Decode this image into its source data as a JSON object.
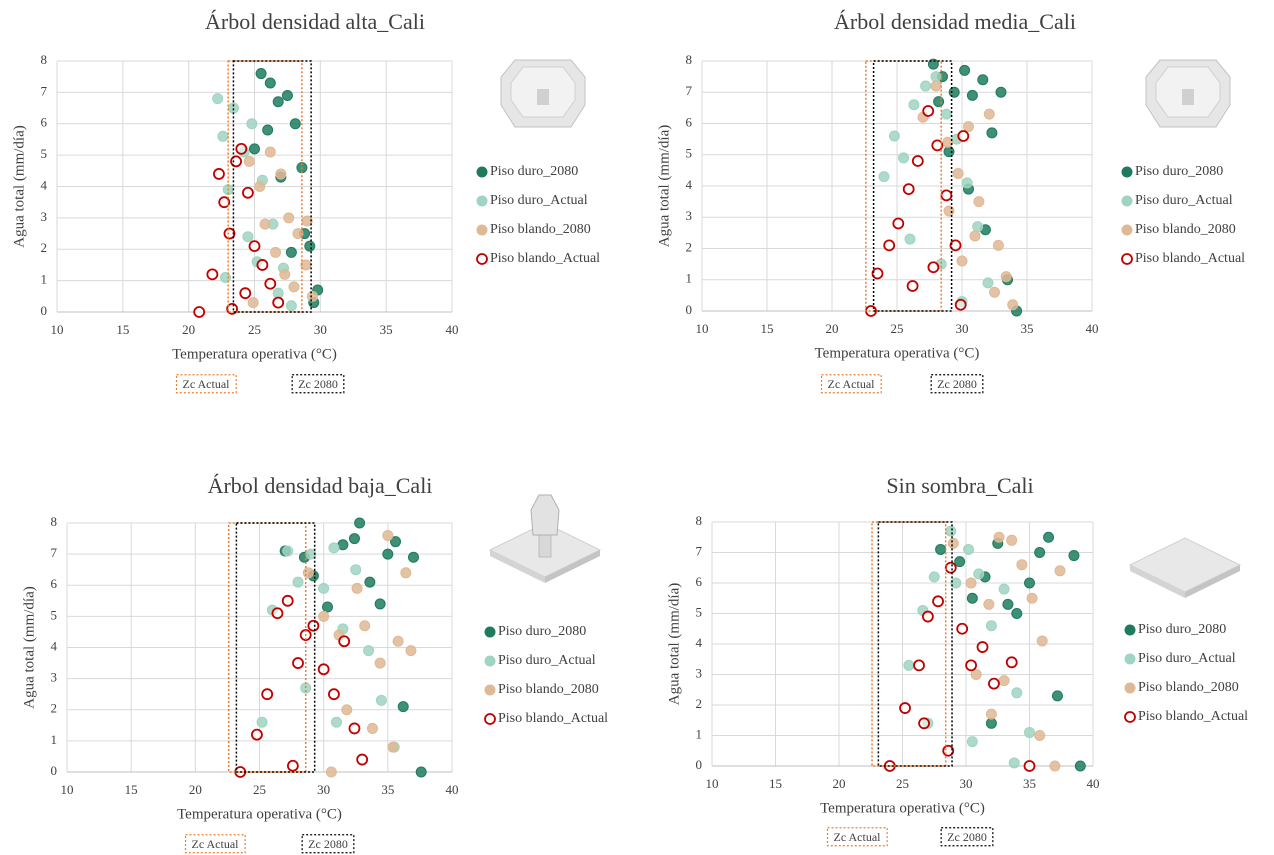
{
  "chart_data": [
    {
      "type": "scatter",
      "title": "Árbol densidad alta_Cali",
      "x_label": "Temperatura operativa (°C)",
      "y_label": "Agua total (mm/día)",
      "xlim": [
        10,
        40
      ],
      "xticks": [
        10,
        15,
        20,
        25,
        30,
        35,
        40
      ],
      "ylim": [
        0,
        8
      ],
      "yticks": [
        0,
        1,
        2,
        3,
        4,
        5,
        6,
        7,
        8
      ],
      "grid": true,
      "zones": [
        {
          "label": "Zc Actual",
          "xlim": [
            23,
            28.6
          ],
          "color": "#ed7d31"
        },
        {
          "label": "Zc 2080",
          "xlim": [
            23.4,
            29.3
          ],
          "color": "#000000"
        }
      ],
      "series": [
        {
          "name": "Piso duro_2080",
          "color": "#1e7b5f",
          "x": [
            25.5,
            26.2,
            26.8,
            27.5,
            28.1,
            28.6,
            29.2,
            29.8,
            27.0,
            26.0,
            28.8,
            25.0,
            27.8,
            29.5
          ],
          "values": [
            7.6,
            7.3,
            6.7,
            6.9,
            6.0,
            4.6,
            2.1,
            0.7,
            4.3,
            5.8,
            2.5,
            5.2,
            1.9,
            0.3
          ]
        },
        {
          "name": "Piso duro_Actual",
          "color": "#9fd4c0",
          "x": [
            22.2,
            22.6,
            23.4,
            24.2,
            24.8,
            25.6,
            26.4,
            27.2,
            23.0,
            24.5,
            25.2,
            26.8,
            22.8,
            27.8
          ],
          "values": [
            6.8,
            5.6,
            6.5,
            5.1,
            6.0,
            4.2,
            2.8,
            1.4,
            3.9,
            2.4,
            1.6,
            0.6,
            1.1,
            0.2
          ]
        },
        {
          "name": "Piso blando_2080",
          "color": "#dfb895",
          "x": [
            24.6,
            25.4,
            26.2,
            27.0,
            27.6,
            28.3,
            28.9,
            29.4,
            25.8,
            26.6,
            27.3,
            28.0,
            29.0,
            24.9
          ],
          "values": [
            4.8,
            4.0,
            5.1,
            4.4,
            3.0,
            2.5,
            1.5,
            0.5,
            2.8,
            1.9,
            1.2,
            0.8,
            2.9,
            0.3
          ]
        },
        {
          "name": "Piso blando_Actual",
          "color": "#c00000",
          "hollow": true,
          "x": [
            20.8,
            21.8,
            22.3,
            22.7,
            23.1,
            23.6,
            24.0,
            24.5,
            25.0,
            25.6,
            26.2,
            26.8,
            23.3,
            24.3
          ],
          "values": [
            0,
            1.2,
            4.4,
            3.5,
            2.5,
            4.8,
            5.2,
            3.8,
            2.1,
            1.5,
            0.9,
            0.3,
            0.1,
            0.6
          ]
        }
      ]
    },
    {
      "type": "scatter",
      "title": "Árbol densidad media_Cali",
      "x_label": "Temperatura operativa (°C)",
      "y_label": "Agua total (mm/día)",
      "xlim": [
        10,
        40
      ],
      "xticks": [
        10,
        15,
        20,
        25,
        30,
        35,
        40
      ],
      "ylim": [
        0,
        8
      ],
      "yticks": [
        0,
        1,
        2,
        3,
        4,
        5,
        6,
        7,
        8
      ],
      "grid": true,
      "zones": [
        {
          "label": "Zc Actual",
          "xlim": [
            22.6,
            28.4
          ],
          "color": "#ed7d31"
        },
        {
          "label": "Zc 2080",
          "xlim": [
            23.2,
            29.2
          ],
          "color": "#000000"
        }
      ],
      "series": [
        {
          "name": "Piso duro_2080",
          "color": "#1e7b5f",
          "x": [
            27.8,
            28.5,
            29.4,
            30.2,
            30.8,
            31.6,
            32.3,
            33.0,
            29.0,
            30.5,
            31.8,
            33.5,
            28.2,
            34.2
          ],
          "values": [
            7.9,
            7.5,
            7.0,
            7.7,
            6.9,
            7.4,
            5.7,
            7.0,
            5.1,
            3.9,
            2.6,
            1.0,
            6.7,
            0.0
          ]
        },
        {
          "name": "Piso duro_Actual",
          "color": "#9fd4c0",
          "x": [
            24.0,
            24.8,
            25.5,
            26.3,
            27.2,
            28.0,
            28.8,
            29.6,
            30.4,
            31.2,
            32.0,
            26.0,
            28.4,
            30.0
          ],
          "values": [
            4.3,
            5.6,
            4.9,
            6.6,
            7.2,
            7.5,
            6.3,
            5.5,
            4.1,
            2.7,
            0.9,
            2.3,
            1.5,
            0.3
          ]
        },
        {
          "name": "Piso blando_2080",
          "color": "#dfb895",
          "x": [
            27.0,
            28.0,
            28.9,
            29.7,
            30.5,
            31.3,
            32.1,
            32.8,
            33.4,
            30.0,
            31.0,
            32.5,
            29.0,
            33.9
          ],
          "values": [
            6.2,
            7.2,
            5.4,
            4.4,
            5.9,
            3.5,
            6.3,
            2.1,
            1.1,
            1.6,
            2.4,
            0.6,
            3.2,
            0.2
          ]
        },
        {
          "name": "Piso blando_Actual",
          "color": "#c00000",
          "hollow": true,
          "x": [
            23.0,
            23.5,
            24.4,
            25.1,
            25.9,
            26.6,
            27.4,
            28.1,
            28.8,
            29.5,
            30.1,
            26.2,
            27.8,
            29.9
          ],
          "values": [
            0.0,
            1.2,
            2.1,
            2.8,
            3.9,
            4.8,
            6.4,
            5.3,
            3.7,
            2.1,
            5.6,
            0.8,
            1.4,
            0.2
          ]
        }
      ]
    },
    {
      "type": "scatter",
      "title": "Árbol densidad baja_Cali",
      "x_label": "Temperatura operativa (°C)",
      "y_label": "Agua total (mm/día)",
      "xlim": [
        10,
        40
      ],
      "xticks": [
        10,
        15,
        20,
        25,
        30,
        35,
        40
      ],
      "ylim": [
        0,
        8
      ],
      "yticks": [
        0,
        1,
        2,
        3,
        4,
        5,
        6,
        7,
        8
      ],
      "grid": true,
      "zones": [
        {
          "label": "Zc Actual",
          "xlim": [
            22.6,
            28.6
          ],
          "color": "#ed7d31"
        },
        {
          "label": "Zc 2080",
          "xlim": [
            23.2,
            29.3
          ],
          "color": "#000000"
        }
      ],
      "series": [
        {
          "name": "Piso duro_2080",
          "color": "#1e7b5f",
          "x": [
            27.0,
            28.5,
            29.2,
            30.3,
            31.5,
            32.4,
            32.8,
            33.6,
            34.4,
            35.0,
            35.6,
            36.2,
            37.0,
            37.6
          ],
          "values": [
            7.1,
            6.9,
            6.3,
            5.3,
            7.3,
            7.5,
            8.0,
            6.1,
            5.4,
            7.0,
            7.4,
            2.1,
            6.9,
            0.0
          ]
        },
        {
          "name": "Piso duro_Actual",
          "color": "#9fd4c0",
          "x": [
            25.2,
            26.0,
            27.2,
            28.0,
            29.0,
            30.0,
            30.8,
            31.5,
            32.5,
            33.5,
            34.5,
            35.5,
            28.6,
            31.0
          ],
          "values": [
            1.6,
            5.2,
            7.1,
            6.1,
            7.0,
            5.9,
            7.2,
            4.6,
            6.5,
            3.9,
            2.3,
            0.8,
            2.7,
            1.6
          ]
        },
        {
          "name": "Piso blando_2080",
          "color": "#dfb895",
          "x": [
            28.8,
            30.0,
            31.2,
            32.6,
            33.2,
            34.4,
            35.0,
            35.8,
            36.4,
            36.8,
            31.8,
            33.8,
            35.4,
            30.6
          ],
          "values": [
            6.4,
            5.0,
            4.4,
            5.9,
            4.7,
            3.5,
            7.6,
            4.2,
            6.4,
            3.9,
            2.0,
            1.4,
            0.8,
            0.0
          ]
        },
        {
          "name": "Piso blando_Actual",
          "color": "#c00000",
          "hollow": true,
          "x": [
            23.5,
            24.8,
            25.6,
            26.4,
            27.2,
            28.0,
            28.6,
            29.2,
            30.0,
            30.8,
            31.6,
            32.4,
            33.0,
            27.6
          ],
          "values": [
            0.0,
            1.2,
            2.5,
            5.1,
            5.5,
            3.5,
            4.4,
            4.7,
            3.3,
            2.5,
            4.2,
            1.4,
            0.4,
            0.2
          ]
        }
      ]
    },
    {
      "type": "scatter",
      "title": "Sin sombra_Cali",
      "x_label": "Temperatura operativa (°C)",
      "y_label": "Agua total (mm/día)",
      "xlim": [
        10,
        40
      ],
      "xticks": [
        10,
        15,
        20,
        25,
        30,
        35,
        40
      ],
      "ylim": [
        0,
        8
      ],
      "yticks": [
        0,
        1,
        2,
        3,
        4,
        5,
        6,
        7,
        8
      ],
      "grid": true,
      "zones": [
        {
          "label": "Zc Actual",
          "xlim": [
            22.6,
            28.4
          ],
          "color": "#ed7d31"
        },
        {
          "label": "Zc 2080",
          "xlim": [
            23.1,
            28.9
          ],
          "color": "#000000"
        }
      ],
      "series": [
        {
          "name": "Piso duro_2080",
          "color": "#1e7b5f",
          "x": [
            28.0,
            29.5,
            30.5,
            31.5,
            32.5,
            33.3,
            34.0,
            35.0,
            35.8,
            36.5,
            37.2,
            38.5,
            32.0,
            39.0
          ],
          "values": [
            7.1,
            6.7,
            5.5,
            6.2,
            7.3,
            5.3,
            5.0,
            6.0,
            7.0,
            7.5,
            2.3,
            6.9,
            1.4,
            0.0
          ]
        },
        {
          "name": "Piso duro_Actual",
          "color": "#9fd4c0",
          "x": [
            25.5,
            26.6,
            27.5,
            28.8,
            29.2,
            30.2,
            31.0,
            32.0,
            33.0,
            34.0,
            35.0,
            27.0,
            30.5,
            33.8
          ],
          "values": [
            3.3,
            5.1,
            6.2,
            7.7,
            6.0,
            7.1,
            6.3,
            4.6,
            5.8,
            2.4,
            1.1,
            1.4,
            0.8,
            0.1
          ]
        },
        {
          "name": "Piso blando_2080",
          "color": "#dfb895",
          "x": [
            29.0,
            30.4,
            31.8,
            32.6,
            33.6,
            34.4,
            35.2,
            36.0,
            37.4,
            30.8,
            33.0,
            35.8,
            32.0,
            37.0
          ],
          "values": [
            7.3,
            6.0,
            5.3,
            7.5,
            7.4,
            6.6,
            5.5,
            4.1,
            6.4,
            3.0,
            2.8,
            1.0,
            1.7,
            0.0
          ]
        },
        {
          "name": "Piso blando_Actual",
          "color": "#c00000",
          "hollow": true,
          "x": [
            24.0,
            25.2,
            26.3,
            27.0,
            27.8,
            28.8,
            29.7,
            30.4,
            31.3,
            32.2,
            33.6,
            26.7,
            28.6,
            35.0
          ],
          "values": [
            0.0,
            1.9,
            3.3,
            4.9,
            5.4,
            6.5,
            4.5,
            3.3,
            3.9,
            2.7,
            3.4,
            1.4,
            0.5,
            0.0
          ]
        }
      ]
    }
  ]
}
